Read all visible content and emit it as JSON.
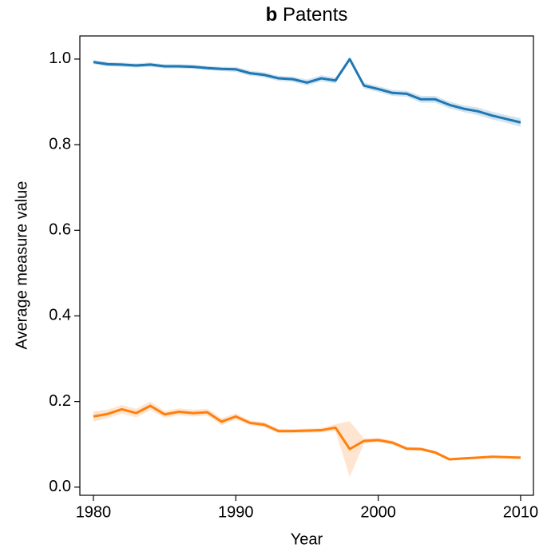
{
  "chart_data": {
    "type": "line",
    "panel_label": "b",
    "title": "Patents",
    "x_label": "Year",
    "y_label": "Average measure value",
    "x": [
      1980,
      1981,
      1982,
      1983,
      1984,
      1985,
      1986,
      1987,
      1988,
      1989,
      1990,
      1991,
      1992,
      1993,
      1994,
      1995,
      1996,
      1997,
      1998,
      1999,
      2000,
      2001,
      2002,
      2003,
      2004,
      2005,
      2006,
      2007,
      2008,
      2009,
      2010
    ],
    "series": [
      {
        "color": "#1f77b4",
        "values": [
          0.993,
          0.988,
          0.987,
          0.985,
          0.987,
          0.983,
          0.983,
          0.982,
          0.979,
          0.977,
          0.976,
          0.967,
          0.963,
          0.955,
          0.953,
          0.945,
          0.955,
          0.95,
          1.0,
          0.938,
          0.93,
          0.921,
          0.919,
          0.906,
          0.906,
          0.893,
          0.884,
          0.878,
          0.868,
          0.86,
          0.852
        ],
        "errors": [
          0.005,
          0.005,
          0.005,
          0.005,
          0.005,
          0.005,
          0.005,
          0.005,
          0.005,
          0.005,
          0.006,
          0.006,
          0.006,
          0.006,
          0.006,
          0.007,
          0.007,
          0.007,
          0.002,
          0.007,
          0.007,
          0.007,
          0.007,
          0.008,
          0.008,
          0.008,
          0.008,
          0.009,
          0.009,
          0.009,
          0.01
        ]
      },
      {
        "color": "#ff7f0e",
        "values": [
          0.165,
          0.171,
          0.182,
          0.173,
          0.19,
          0.17,
          0.176,
          0.173,
          0.175,
          0.153,
          0.165,
          0.15,
          0.146,
          0.131,
          0.131,
          0.132,
          0.133,
          0.139,
          0.089,
          0.108,
          0.11,
          0.104,
          0.09,
          0.089,
          0.081,
          0.065,
          0.067,
          0.069,
          0.071,
          0.07,
          0.069
        ],
        "errors": [
          0.012,
          0.01,
          0.01,
          0.01,
          0.01,
          0.008,
          0.008,
          0.008,
          0.008,
          0.008,
          0.007,
          0.006,
          0.006,
          0.005,
          0.005,
          0.005,
          0.005,
          0.008,
          0.065,
          0.006,
          0.005,
          0.005,
          0.004,
          0.004,
          0.004,
          0.003,
          0.003,
          0.003,
          0.003,
          0.003,
          0.003
        ]
      }
    ],
    "xlim": [
      1979.05,
      2010.9
    ],
    "xticks": [
      1980,
      1990,
      2000,
      2010
    ],
    "ylim": [
      -0.019,
      1.054
    ],
    "yticks": [
      {
        "value": 0,
        "label": "0.0"
      },
      0.2,
      0.4,
      0.6,
      0.8,
      {
        "value": 1,
        "label": "1.0"
      }
    ],
    "grid": false
  }
}
